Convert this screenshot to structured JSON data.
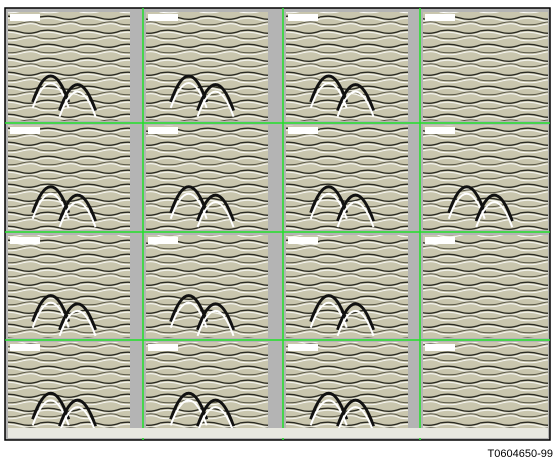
{
  "figure_id": "T0604650-99"
}
